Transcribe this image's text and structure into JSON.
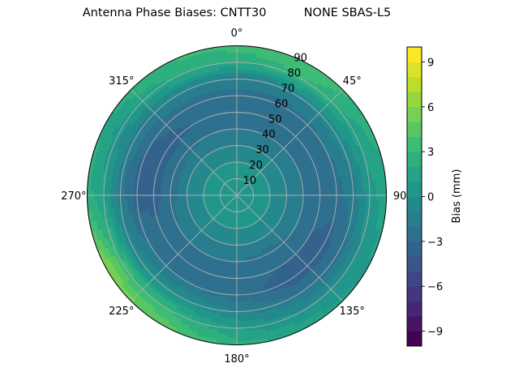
{
  "chart_data": {
    "type": "heatmap",
    "subtype": "polar-filled-contour",
    "title": "Antenna Phase Biases: CNTT30          NONE SBAS-L5",
    "colorbar_label": "Bias (mm)",
    "colormap": "viridis",
    "levels": [
      -10,
      -9,
      -8,
      -7,
      -6,
      -5,
      -4,
      -3,
      -2,
      -1,
      0,
      1,
      2,
      3,
      4,
      5,
      6,
      7,
      8,
      9,
      10
    ],
    "colorbar_ticks": [
      -9,
      -6,
      -3,
      0,
      3,
      6,
      9
    ],
    "colorbar_tick_labels": [
      "−9",
      "−6",
      "−3",
      "0",
      "3",
      "6",
      "9"
    ],
    "theta_direction": "clockwise",
    "theta_zero": "north",
    "theta_tick_labels": [
      "0°",
      "45°",
      "90",
      "135°",
      "180°",
      "225°",
      "270°",
      "315°"
    ],
    "r_ticks": [
      10,
      20,
      30,
      40,
      50,
      60,
      70,
      80,
      90
    ],
    "r_tick_labels": [
      "10",
      "20",
      "30",
      "40",
      "50",
      "60",
      "70",
      "80",
      "90"
    ],
    "rlim": [
      0,
      90
    ],
    "grid": true,
    "azimuth_deg": [
      0,
      30,
      60,
      90,
      120,
      150,
      180,
      210,
      240,
      270,
      300,
      330
    ],
    "zenith_deg": [
      0,
      10,
      20,
      30,
      40,
      50,
      60,
      70,
      80,
      90
    ],
    "bias_mm": [
      [
        1,
        0.5,
        0,
        -1,
        -2,
        -2.5,
        -2.5,
        -1.5,
        2,
        3.5
      ],
      [
        1,
        0.5,
        0,
        -1,
        -2,
        -2.5,
        -2.5,
        -1,
        3,
        4
      ],
      [
        1,
        0.5,
        0,
        -1,
        -2,
        -2.5,
        -2,
        -0.5,
        1.5,
        2.5
      ],
      [
        1,
        0.5,
        0,
        -1,
        -2,
        -2.5,
        -2.5,
        -1.5,
        0.5,
        1.5
      ],
      [
        1,
        0.5,
        0,
        -1,
        -2,
        -3,
        -3.5,
        -2.5,
        0,
        1
      ],
      [
        1,
        0.5,
        0,
        -1,
        -2.5,
        -3,
        -3.5,
        -2,
        0,
        1.5
      ],
      [
        1,
        0.5,
        0,
        -1,
        -2,
        -2.5,
        -2.5,
        -1,
        1,
        2.5
      ],
      [
        1,
        0.5,
        0,
        -1,
        -2,
        -2.5,
        -2,
        0,
        3,
        4.5
      ],
      [
        1,
        0.5,
        0,
        -1,
        -2,
        -2.5,
        -2,
        -0.5,
        3.5,
        6
      ],
      [
        1,
        0.5,
        0,
        -1,
        -2.5,
        -3.5,
        -3.5,
        -1.5,
        1,
        2.5
      ],
      [
        1,
        0.5,
        0,
        -1,
        -2.5,
        -3.5,
        -3,
        -1.5,
        0.5,
        2
      ],
      [
        1,
        0.5,
        0,
        -1,
        -2,
        -3,
        -2.5,
        -1,
        2,
        3
      ]
    ]
  }
}
